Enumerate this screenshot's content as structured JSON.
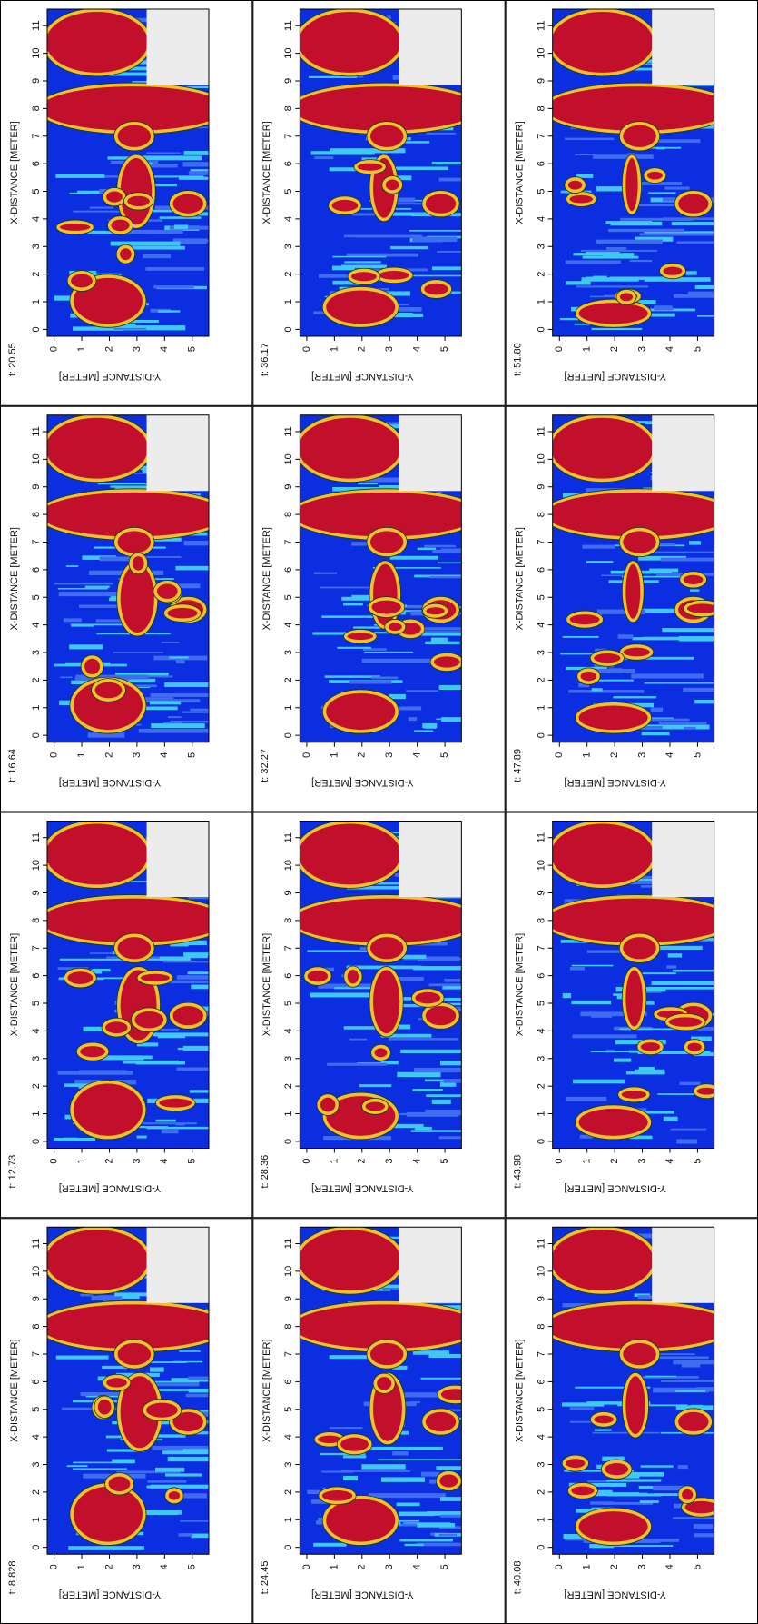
{
  "chart_data": [
    {
      "type": "contour",
      "title": "t: 8.828",
      "x_label": "X-DISTANCE [METER]",
      "y_label": "Y-DISTANCE [METER]",
      "xlim": [
        -0.25,
        11.6
      ],
      "ylim": [
        -0.25,
        5.6
      ],
      "xticks": [
        0,
        1,
        2,
        3,
        4,
        5,
        6,
        7,
        8,
        9,
        10,
        11
      ],
      "yticks": [
        0,
        1,
        2,
        3,
        4,
        5
      ]
    },
    {
      "type": "contour",
      "title": "t: 12.73",
      "x_label": "X-DISTANCE [METER]",
      "y_label": "Y-DISTANCE [METER]",
      "xlim": [
        -0.25,
        11.6
      ],
      "ylim": [
        -0.25,
        5.6
      ],
      "xticks": [
        0,
        1,
        2,
        3,
        4,
        5,
        6,
        7,
        8,
        9,
        10,
        11
      ],
      "yticks": [
        0,
        1,
        2,
        3,
        4,
        5
      ]
    },
    {
      "type": "contour",
      "title": "t: 16.64",
      "x_label": "X-DISTANCE [METER]",
      "y_label": "Y-DISTANCE [METER]",
      "xlim": [
        -0.25,
        11.6
      ],
      "ylim": [
        -0.25,
        5.6
      ],
      "xticks": [
        0,
        1,
        2,
        3,
        4,
        5,
        6,
        7,
        8,
        9,
        10,
        11
      ],
      "yticks": [
        0,
        1,
        2,
        3,
        4,
        5
      ]
    },
    {
      "type": "contour",
      "title": "t: 20.55",
      "x_label": "X-DISTANCE [METER]",
      "y_label": "Y-DISTANCE [METER]",
      "xlim": [
        -0.25,
        11.6
      ],
      "ylim": [
        -0.25,
        5.6
      ],
      "xticks": [
        0,
        1,
        2,
        3,
        4,
        5,
        6,
        7,
        8,
        9,
        10,
        11
      ],
      "yticks": [
        0,
        1,
        2,
        3,
        4,
        5
      ]
    },
    {
      "type": "contour",
      "title": "t: 24.45",
      "x_label": "X-DISTANCE [METER]",
      "y_label": "Y-DISTANCE [METER]",
      "xlim": [
        -0.25,
        11.6
      ],
      "ylim": [
        -0.25,
        5.6
      ],
      "xticks": [
        0,
        1,
        2,
        3,
        4,
        5,
        6,
        7,
        8,
        9,
        10,
        11
      ],
      "yticks": [
        0,
        1,
        2,
        3,
        4,
        5
      ]
    },
    {
      "type": "contour",
      "title": "t: 28.36",
      "x_label": "X-DISTANCE [METER]",
      "y_label": "Y-DISTANCE [METER]",
      "xlim": [
        -0.25,
        11.6
      ],
      "ylim": [
        -0.25,
        5.6
      ],
      "xticks": [
        0,
        1,
        2,
        3,
        4,
        5,
        6,
        7,
        8,
        9,
        10,
        11
      ],
      "yticks": [
        0,
        1,
        2,
        3,
        4,
        5
      ]
    },
    {
      "type": "contour",
      "title": "t: 32.27",
      "x_label": "X-DISTANCE [METER]",
      "y_label": "Y-DISTANCE [METER]",
      "xlim": [
        -0.25,
        11.6
      ],
      "ylim": [
        -0.25,
        5.6
      ],
      "xticks": [
        0,
        1,
        2,
        3,
        4,
        5,
        6,
        7,
        8,
        9,
        10,
        11
      ],
      "yticks": [
        0,
        1,
        2,
        3,
        4,
        5
      ]
    },
    {
      "type": "contour",
      "title": "t: 36.17",
      "x_label": "X-DISTANCE [METER]",
      "y_label": "Y-DISTANCE [METER]",
      "xlim": [
        -0.25,
        11.6
      ],
      "ylim": [
        -0.25,
        5.6
      ],
      "xticks": [
        0,
        1,
        2,
        3,
        4,
        5,
        6,
        7,
        8,
        9,
        10,
        11
      ],
      "yticks": [
        0,
        1,
        2,
        3,
        4,
        5
      ]
    },
    {
      "type": "contour",
      "title": "t: 40.08",
      "x_label": "X-DISTANCE [METER]",
      "y_label": "Y-DISTANCE [METER]",
      "xlim": [
        -0.25,
        11.6
      ],
      "ylim": [
        -0.25,
        5.6
      ],
      "xticks": [
        0,
        1,
        2,
        3,
        4,
        5,
        6,
        7,
        8,
        9,
        10,
        11
      ],
      "yticks": [
        0,
        1,
        2,
        3,
        4,
        5
      ]
    },
    {
      "type": "contour",
      "title": "t: 43.98",
      "x_label": "X-DISTANCE [METER]",
      "y_label": "Y-DISTANCE [METER]",
      "xlim": [
        -0.25,
        11.6
      ],
      "ylim": [
        -0.25,
        5.6
      ],
      "xticks": [
        0,
        1,
        2,
        3,
        4,
        5,
        6,
        7,
        8,
        9,
        10,
        11
      ],
      "yticks": [
        0,
        1,
        2,
        3,
        4,
        5
      ]
    },
    {
      "type": "contour",
      "title": "t: 47.89",
      "x_label": "X-DISTANCE [METER]",
      "y_label": "Y-DISTANCE [METER]",
      "xlim": [
        -0.25,
        11.6
      ],
      "ylim": [
        -0.25,
        5.6
      ],
      "xticks": [
        0,
        1,
        2,
        3,
        4,
        5,
        6,
        7,
        8,
        9,
        10,
        11
      ],
      "yticks": [
        0,
        1,
        2,
        3,
        4,
        5
      ]
    },
    {
      "type": "contour",
      "title": "t: 51.80",
      "x_label": "X-DISTANCE [METER]",
      "y_label": "Y-DISTANCE [METER]",
      "xlim": [
        -0.25,
        11.6
      ],
      "ylim": [
        -0.25,
        5.6
      ],
      "xticks": [
        0,
        1,
        2,
        3,
        4,
        5,
        6,
        7,
        8,
        9,
        10,
        11
      ],
      "yticks": [
        0,
        1,
        2,
        3,
        4,
        5
      ]
    }
  ]
}
